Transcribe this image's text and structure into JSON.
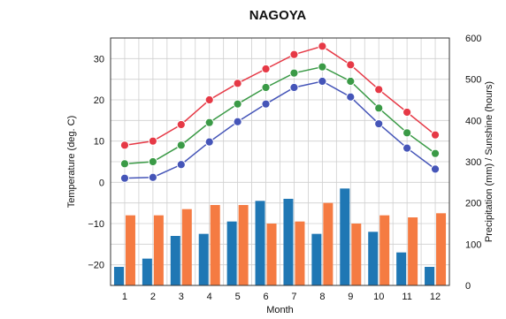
{
  "chart_data": {
    "type": "bar+line",
    "title": "NAGOYA",
    "xlabel": "Month",
    "ylabel_left": "Temperature (deg. C)",
    "ylabel_right": "Precipitation (mm)  /  Sunshine (hours)",
    "categories": [
      "1",
      "2",
      "3",
      "4",
      "5",
      "6",
      "7",
      "8",
      "9",
      "10",
      "11",
      "12"
    ],
    "y_left": {
      "min": -25,
      "max": 35,
      "ticks": [
        -20,
        -10,
        0,
        10,
        20,
        30
      ],
      "tick_labels": [
        "−20",
        "−10",
        "0",
        "10",
        "20",
        "30"
      ]
    },
    "y_right": {
      "min": 0,
      "max": 600,
      "ticks": [
        0,
        100,
        200,
        300,
        400,
        500,
        600
      ],
      "tick_labels": [
        "0",
        "100",
        "200",
        "300",
        "400",
        "500",
        "600"
      ]
    },
    "grid": true,
    "lines": [
      {
        "axis": "left",
        "color": "#e63946",
        "values": [
          9,
          10,
          14,
          20,
          24,
          27.5,
          31,
          33,
          28.5,
          22.5,
          17,
          11.5
        ]
      },
      {
        "axis": "left",
        "color": "#3a9a46",
        "values": [
          4.5,
          5,
          9,
          14.5,
          19,
          23,
          26.5,
          28,
          24.5,
          18,
          12,
          7
        ]
      },
      {
        "axis": "left",
        "color": "#4555b8",
        "values": [
          1,
          1.2,
          4.3,
          9.8,
          14.7,
          19,
          23,
          24.5,
          20.7,
          14.2,
          8.3,
          3.2
        ]
      }
    ],
    "bars": [
      {
        "axis": "right",
        "color": "#1f77b4",
        "values": [
          45,
          65,
          120,
          125,
          155,
          205,
          210,
          125,
          235,
          130,
          80,
          45
        ]
      },
      {
        "axis": "right",
        "color": "#f57b42",
        "values": [
          170,
          170,
          185,
          195,
          195,
          150,
          155,
          200,
          150,
          170,
          165,
          175
        ]
      }
    ]
  }
}
